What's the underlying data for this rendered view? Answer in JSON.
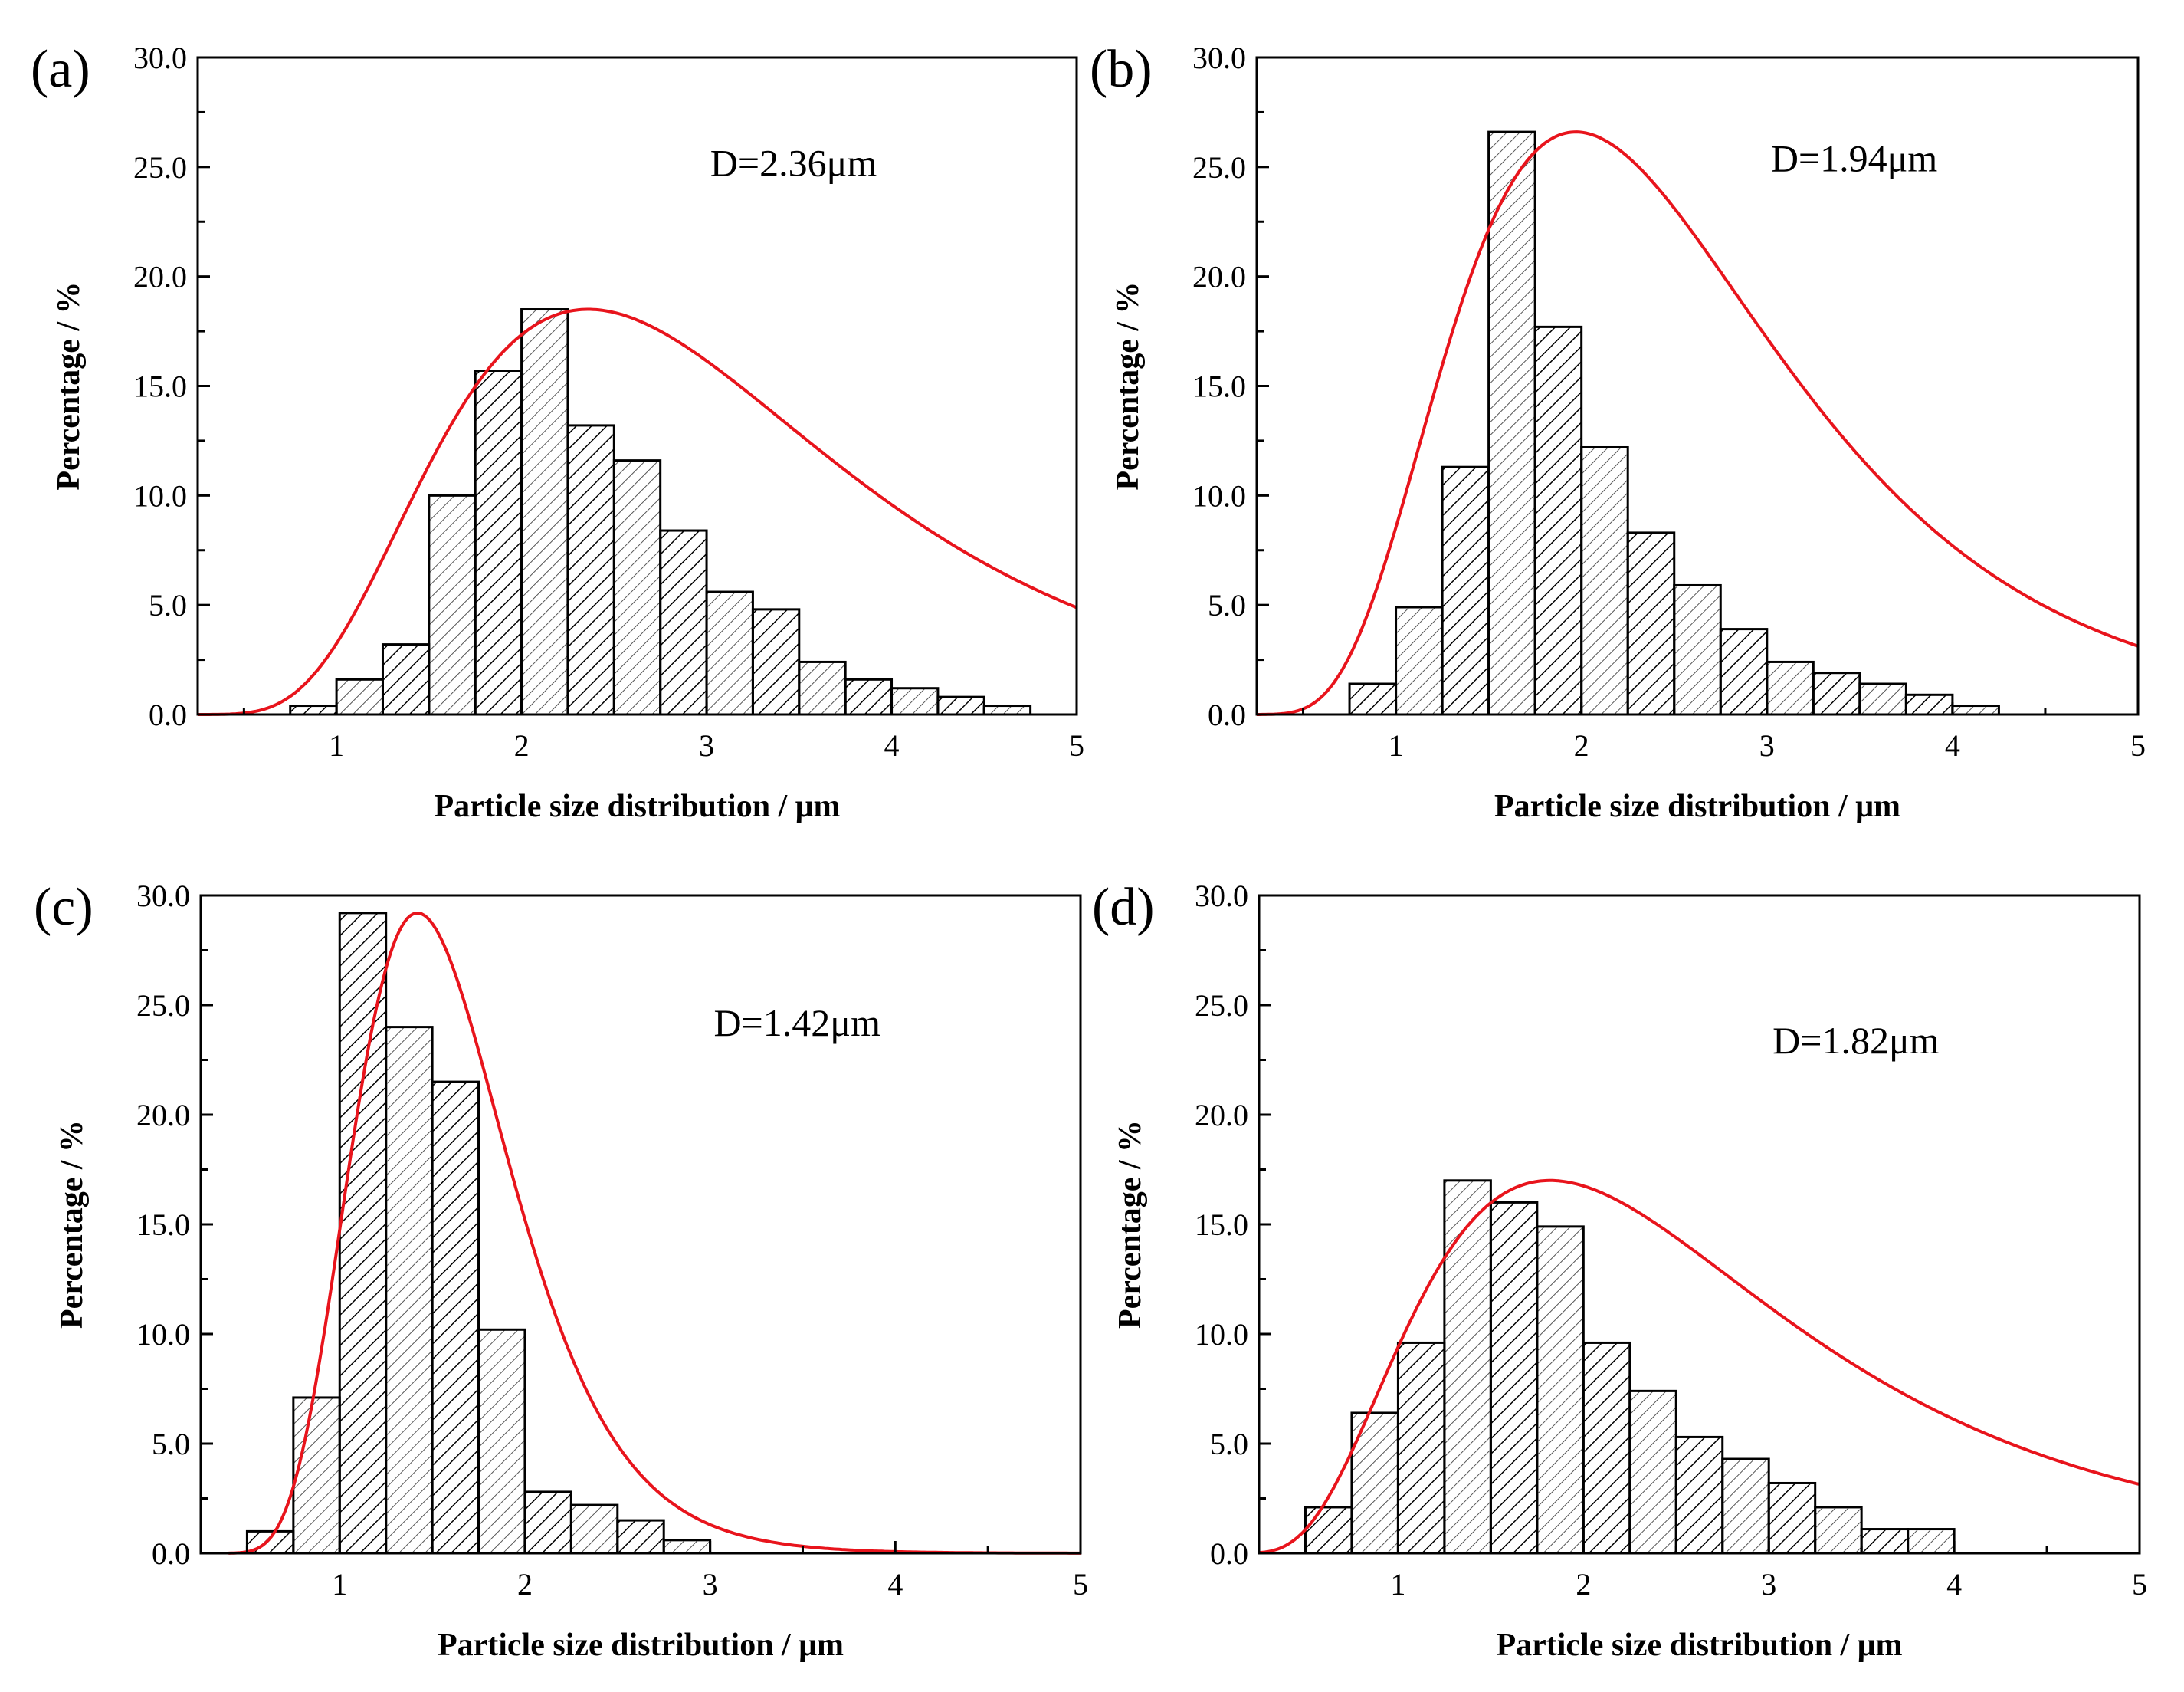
{
  "colors": {
    "bar_stroke": "#000000",
    "hatch": "#000000",
    "fit_curve": "#e8141c",
    "frame": "#000000"
  },
  "chart_data": [
    {
      "panel_label": "(a)",
      "type": "bar",
      "title": "",
      "xlabel": "Particle size distribution / μm",
      "ylabel": "Percentage / %",
      "annotation": "D=2.36μm",
      "xlim": [
        0.25,
        5.0
      ],
      "ylim": [
        0,
        30
      ],
      "xticks": [
        1,
        2,
        3,
        4,
        5
      ],
      "xtick_labels": [
        "1",
        "2",
        "3",
        "4",
        "5"
      ],
      "yticks": [
        0,
        5,
        10,
        15,
        20,
        25,
        30
      ],
      "ytick_labels": [
        "0.0",
        "5.0",
        "10.0",
        "15.0",
        "20.0",
        "25.0",
        "30.0"
      ],
      "bin_width": 0.25,
      "bin_left_edges": [
        0.75,
        1.0,
        1.25,
        1.5,
        1.75,
        2.0,
        2.25,
        2.5,
        2.75,
        3.0,
        3.25,
        3.5,
        3.75,
        4.0,
        4.25,
        4.5
      ],
      "values": [
        0.4,
        1.6,
        3.2,
        10.0,
        15.7,
        18.5,
        13.2,
        11.6,
        8.4,
        5.6,
        4.8,
        2.4,
        1.6,
        1.2,
        0.8,
        0.4
      ],
      "fit_curve": {
        "type": "lognormal",
        "x_start": 0.25,
        "x_end": 5.0,
        "peak_x": 2.36,
        "peak_y": 18.5,
        "sigma": 0.46
      }
    },
    {
      "panel_label": "(b)",
      "type": "bar",
      "title": "",
      "xlabel": "Particle size distribution / μm",
      "ylabel": "Percentage / %",
      "annotation": "D=1.94μm",
      "xlim": [
        0.25,
        5.0
      ],
      "ylim": [
        0,
        30
      ],
      "xticks": [
        1,
        2,
        3,
        4,
        5
      ],
      "xtick_labels": [
        "1",
        "2",
        "3",
        "4",
        "5"
      ],
      "yticks": [
        0,
        5,
        10,
        15,
        20,
        25,
        30
      ],
      "ytick_labels": [
        "0.0",
        "5.0",
        "10.0",
        "15.0",
        "20.0",
        "25.0",
        "30.0"
      ],
      "bin_width": 0.25,
      "bin_left_edges": [
        0.75,
        1.0,
        1.25,
        1.5,
        1.75,
        2.0,
        2.25,
        2.5,
        2.75,
        3.0,
        3.25,
        3.5,
        3.75,
        4.0
      ],
      "values": [
        1.4,
        4.9,
        11.3,
        26.6,
        17.7,
        12.2,
        8.3,
        5.9,
        3.9,
        2.4,
        1.9,
        1.4,
        0.9,
        0.4
      ],
      "fit_curve": {
        "type": "lognormal",
        "x_start": 0.25,
        "x_end": 5.0,
        "peak_x": 1.97,
        "peak_y": 26.6,
        "sigma": 0.45
      }
    },
    {
      "panel_label": "(c)",
      "type": "bar",
      "title": "",
      "xlabel": "Particle size distribution / μm",
      "ylabel": "Percentage / %",
      "annotation": "D=1.42μm",
      "xlim": [
        0.25,
        5.0
      ],
      "ylim": [
        0,
        30
      ],
      "xticks": [
        1,
        2,
        3,
        4,
        5
      ],
      "xtick_labels": [
        "1",
        "2",
        "3",
        "4",
        "5"
      ],
      "yticks": [
        0,
        5,
        10,
        15,
        20,
        25,
        30
      ],
      "ytick_labels": [
        "0.0",
        "5.0",
        "10.0",
        "15.0",
        "20.0",
        "25.0",
        "30.0"
      ],
      "bin_width": 0.25,
      "bin_left_edges": [
        0.5,
        0.75,
        1.0,
        1.25,
        1.5,
        1.75,
        2.0,
        2.25,
        2.5,
        2.75
      ],
      "values": [
        1.0,
        7.1,
        29.2,
        24.0,
        21.5,
        10.2,
        2.8,
        2.2,
        1.5,
        0.6
      ],
      "fit_curve": {
        "type": "lognormal",
        "x_start": 0.4,
        "x_end": 5.0,
        "peak_x": 1.42,
        "peak_y": 29.2,
        "sigma": 0.3
      }
    },
    {
      "panel_label": "(d)",
      "type": "bar",
      "title": "",
      "xlabel": "Particle size distribution / μm",
      "ylabel": "Percentage / %",
      "annotation": "D=1.82μm",
      "xlim": [
        0.25,
        5.0
      ],
      "ylim": [
        0,
        30
      ],
      "xticks": [
        1,
        2,
        3,
        4,
        5
      ],
      "xtick_labels": [
        "1",
        "2",
        "3",
        "4",
        "5"
      ],
      "yticks": [
        0,
        5,
        10,
        15,
        20,
        25,
        30
      ],
      "ytick_labels": [
        "0.0",
        "5.0",
        "10.0",
        "15.0",
        "20.0",
        "25.0",
        "30.0"
      ],
      "bin_width": 0.25,
      "bin_left_edges": [
        0.5,
        0.75,
        1.0,
        1.25,
        1.5,
        1.75,
        2.0,
        2.25,
        2.5,
        2.75,
        3.0,
        3.25,
        3.5,
        3.75
      ],
      "values": [
        2.1,
        6.4,
        9.6,
        17.0,
        16.0,
        14.9,
        9.6,
        7.4,
        5.3,
        4.3,
        3.2,
        2.1,
        1.1,
        1.1
      ],
      "fit_curve": {
        "type": "lognormal",
        "x_start": 0.25,
        "x_end": 5.0,
        "peak_x": 1.82,
        "peak_y": 17.0,
        "sigma": 0.55
      }
    }
  ]
}
